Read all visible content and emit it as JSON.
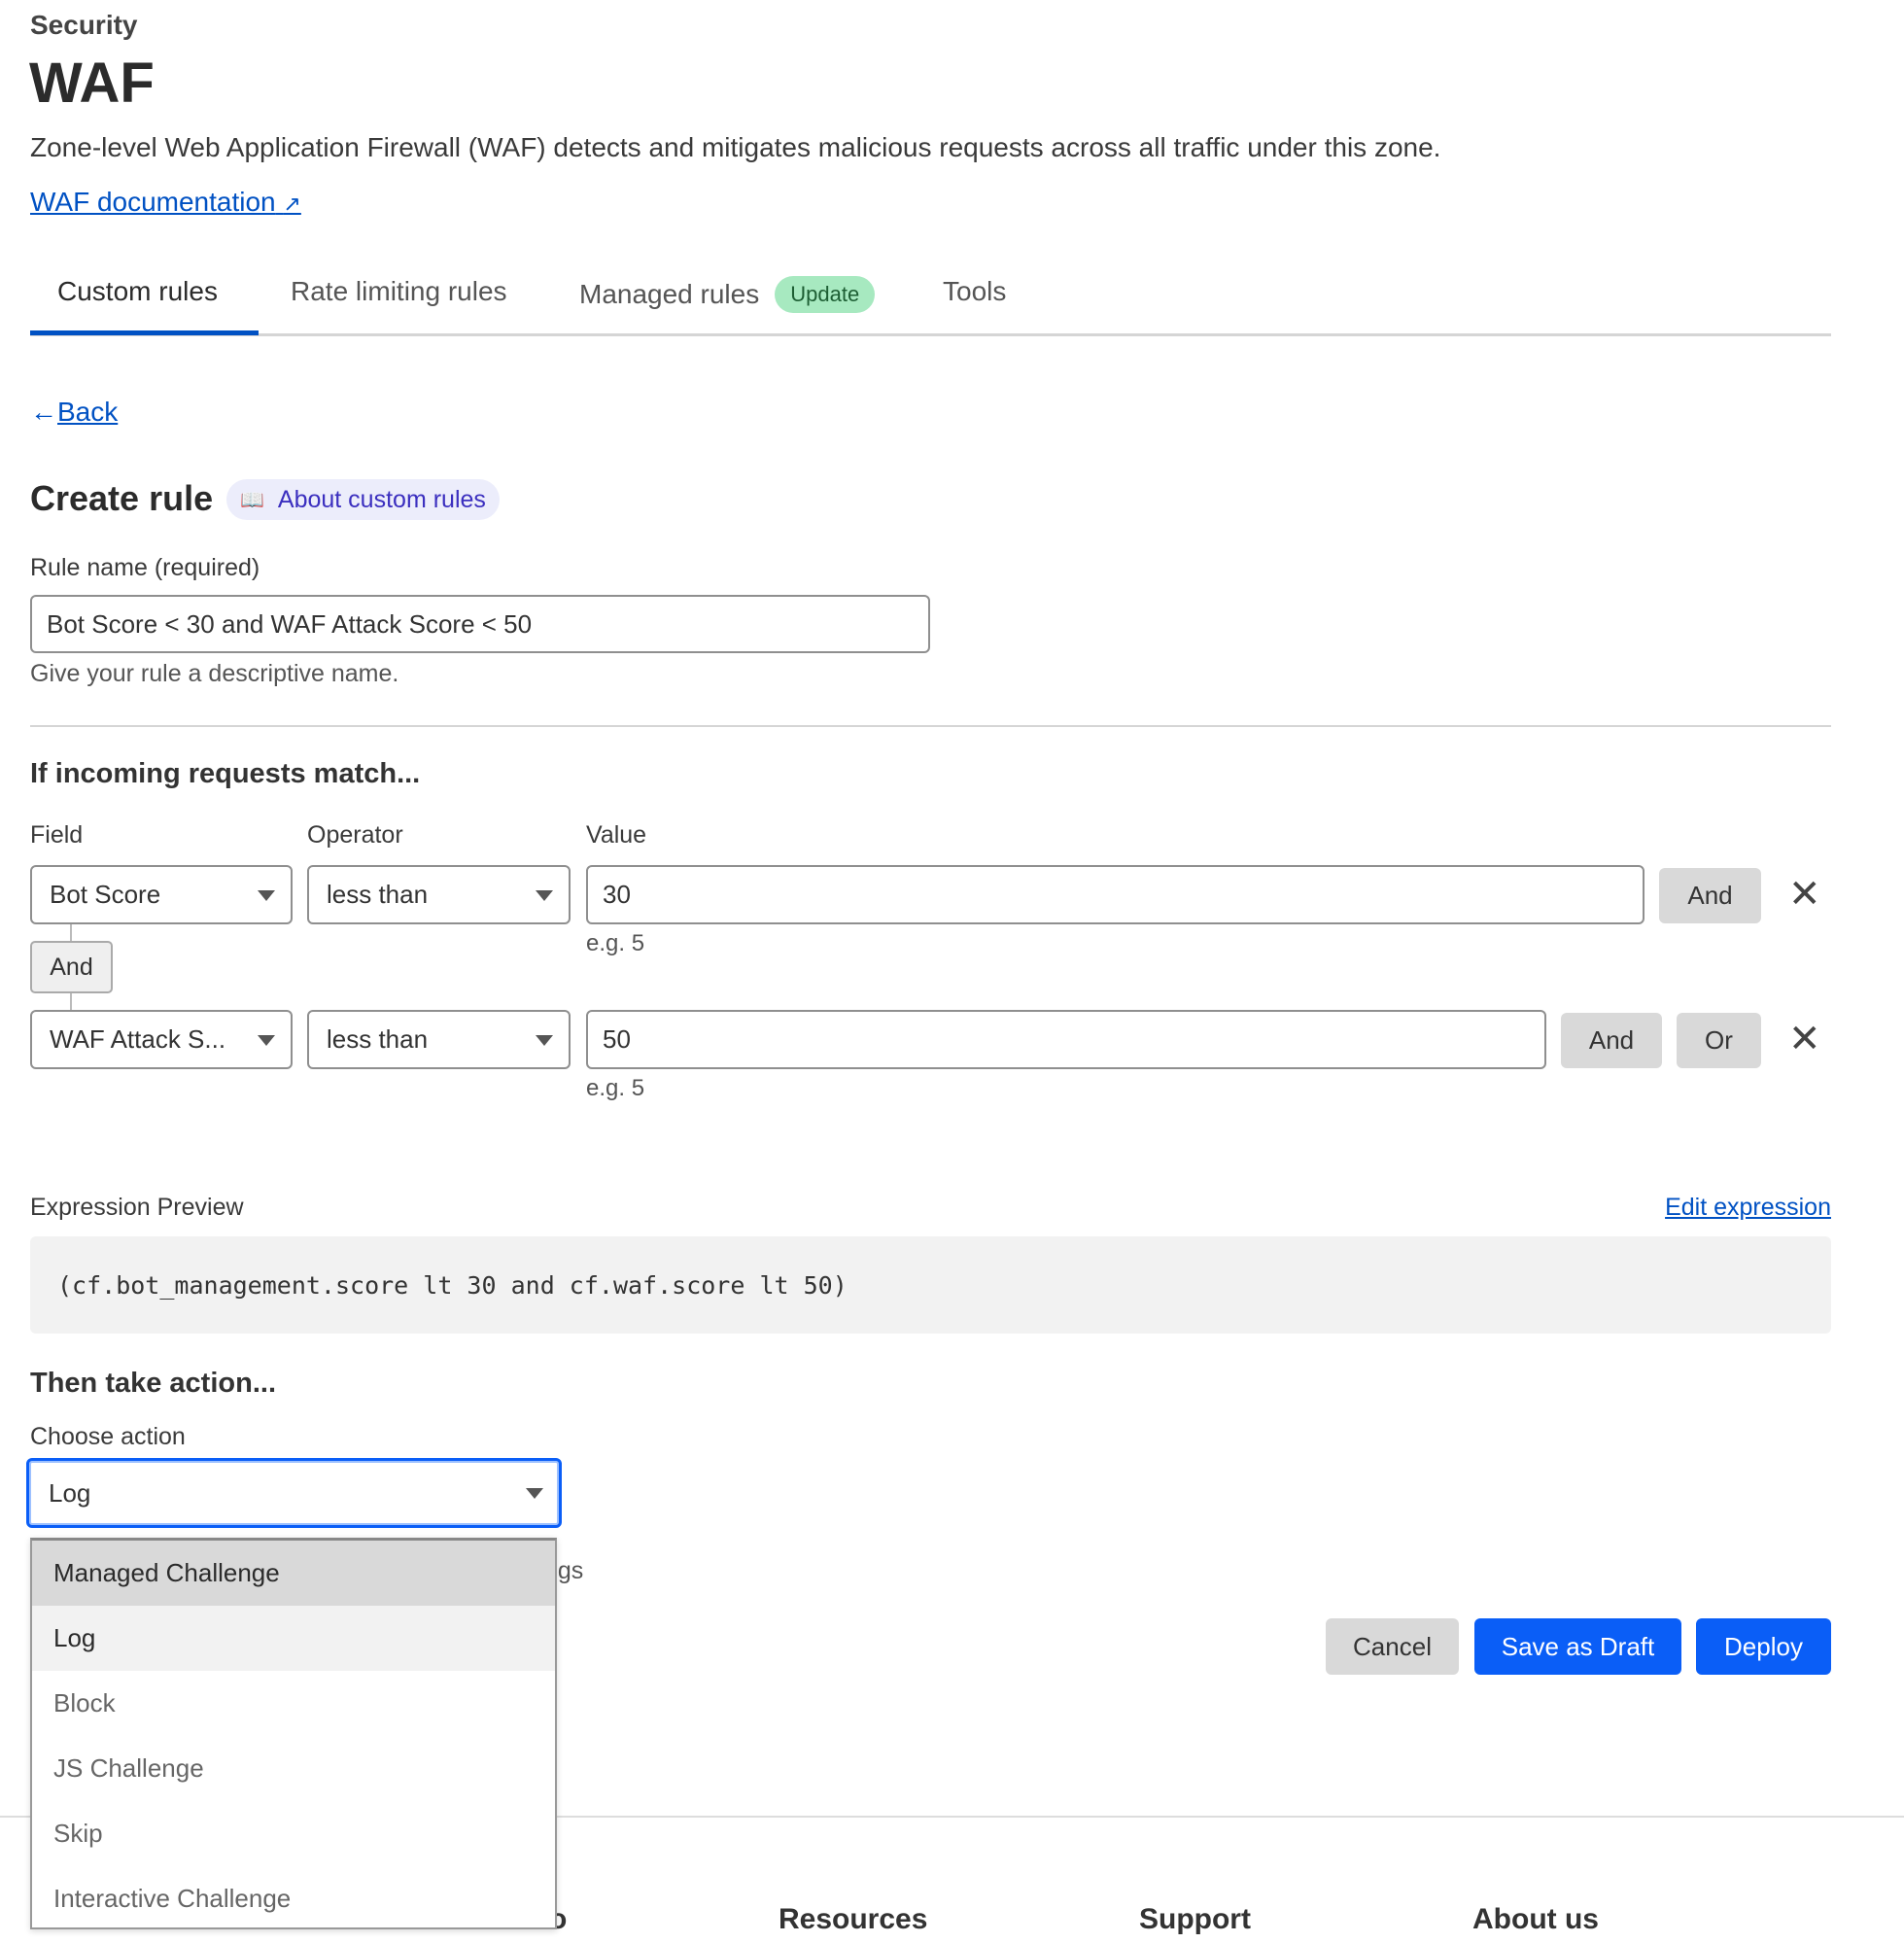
{
  "header": {
    "section": "Security",
    "title": "WAF",
    "description": "Zone-level Web Application Firewall (WAF) detects and mitigates malicious requests across all traffic under this zone.",
    "doc_link": "WAF documentation"
  },
  "tabs": [
    {
      "label": "Custom rules",
      "active": true
    },
    {
      "label": "Rate limiting rules"
    },
    {
      "label": "Managed rules",
      "badge": "Update"
    },
    {
      "label": "Tools"
    }
  ],
  "back_label": "Back",
  "create": {
    "title": "Create rule",
    "about_label": "About custom rules"
  },
  "rule_name": {
    "label": "Rule name (required)",
    "value": "Bot Score < 30 and WAF Attack Score < 50",
    "helper": "Give your rule a descriptive name."
  },
  "match": {
    "heading": "If incoming requests match...",
    "col_field": "Field",
    "col_operator": "Operator",
    "col_value": "Value",
    "rows": [
      {
        "field": "Bot Score",
        "operator": "less than",
        "value": "30",
        "hint": "e.g. 5",
        "and": "And"
      },
      {
        "field": "WAF Attack S...",
        "operator": "less than",
        "value": "50",
        "hint": "e.g. 5",
        "and": "And",
        "or": "Or"
      }
    ],
    "connector": "And"
  },
  "expression": {
    "label": "Expression Preview",
    "edit_label": "Edit expression",
    "code": "(cf.bot_management.score lt 30 and cf.waf.score lt 50)"
  },
  "action": {
    "heading": "Then take action...",
    "label": "Choose action",
    "selected": "Log",
    "hidden_text_fragment": "ogs",
    "options": [
      "Managed Challenge",
      "Log",
      "Block",
      "JS Challenge",
      "Skip",
      "Interactive Challenge"
    ]
  },
  "buttons": {
    "cancel": "Cancel",
    "draft": "Save as Draft",
    "deploy": "Deploy"
  },
  "footer": {
    "partial": "o",
    "resources": "Resources",
    "support": "Support",
    "about": "About us"
  },
  "colors": {
    "accent": "#0a5ef7",
    "link": "#0051c3",
    "badge_bg": "#a7e9c0",
    "badge_text": "#1d5e33"
  }
}
